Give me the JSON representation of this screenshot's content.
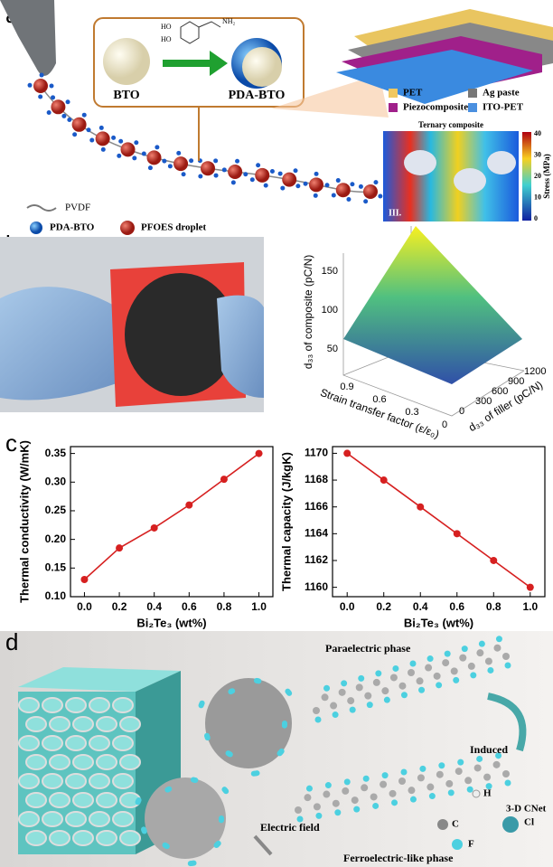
{
  "panel_labels": [
    "a",
    "b",
    "c",
    "d"
  ],
  "panel_a": {
    "molecule_labels": [
      "HO",
      "HO",
      "NH₂"
    ],
    "particles": [
      "BTO",
      "PDA-BTO"
    ],
    "legend": [
      "PVDF",
      "PDA-BTO",
      "PFOES droplet"
    ],
    "layers": [
      "PET",
      "Ag paste",
      "Piezocomposite",
      "ITO-PET"
    ],
    "inset_title": "Ternary composite",
    "inset_label": "III.",
    "colorbar_title": "Stress (MPa)",
    "colorbar_ticks": [
      "40",
      "30",
      "20",
      "10",
      "0"
    ]
  },
  "panel_b": {
    "z_label": "d₃₃ of composite (pC/N)",
    "z_ticks": [
      "150",
      "100",
      "50"
    ],
    "x_label": "Strain transfer factor (ε/ε₀)",
    "x_ticks": [
      "0.9",
      "0.6",
      "0.3",
      "0"
    ],
    "y_label": "d₃₃ of filler (pC/N)",
    "y_ticks": [
      "0",
      "300",
      "600",
      "900",
      "1200"
    ]
  },
  "panel_d": {
    "top_phase": "Paraelectric phase",
    "arrow_label": "Induced",
    "bottom_phase": "Ferroelectric-like phase",
    "field_label": "Electric field",
    "atoms": [
      "H",
      "3-D CNet",
      "C",
      "F",
      "Cl"
    ]
  },
  "chart_data": [
    {
      "type": "line",
      "x_label": "Bi₂Te₃ (wt%)",
      "y_label": "Thermal conductivity (W/mK)",
      "x": [
        0,
        0.2,
        0.4,
        0.6,
        0.8,
        1.0
      ],
      "values": [
        0.13,
        0.185,
        0.22,
        0.26,
        0.305,
        0.35
      ],
      "color": "#d62020",
      "xlim": [
        -0.08,
        1.08
      ],
      "xticks": [
        {
          "value": 0,
          "label": "0.0"
        },
        0.2,
        0.4,
        0.6,
        0.8,
        {
          "value": 1,
          "label": "1.0"
        }
      ],
      "ylim": [
        0.1,
        0.362
      ],
      "yticks": [
        {
          "value": 0.1,
          "label": "0.10"
        },
        0.15,
        {
          "value": 0.2,
          "label": "0.20"
        },
        0.25,
        {
          "value": 0.3,
          "label": "0.30"
        },
        0.35
      ]
    },
    {
      "type": "line",
      "x_label": "Bi₂Te₃ (wt%)",
      "y_label": "Thermal capacity (J/kgK)",
      "x": [
        0,
        0.2,
        0.4,
        0.6,
        0.8,
        1.0
      ],
      "values": [
        1170,
        1168,
        1166,
        1164,
        1162,
        1160
      ],
      "color": "#d62020",
      "xlim": [
        -0.08,
        1.08
      ],
      "xticks": [
        {
          "value": 0,
          "label": "0.0"
        },
        0.2,
        0.4,
        0.6,
        0.8,
        {
          "value": 1,
          "label": "1.0"
        }
      ],
      "ylim": [
        1159.3,
        1170.5
      ],
      "yticks": [
        1160,
        1162,
        1164,
        1166,
        1168,
        1170
      ]
    }
  ]
}
